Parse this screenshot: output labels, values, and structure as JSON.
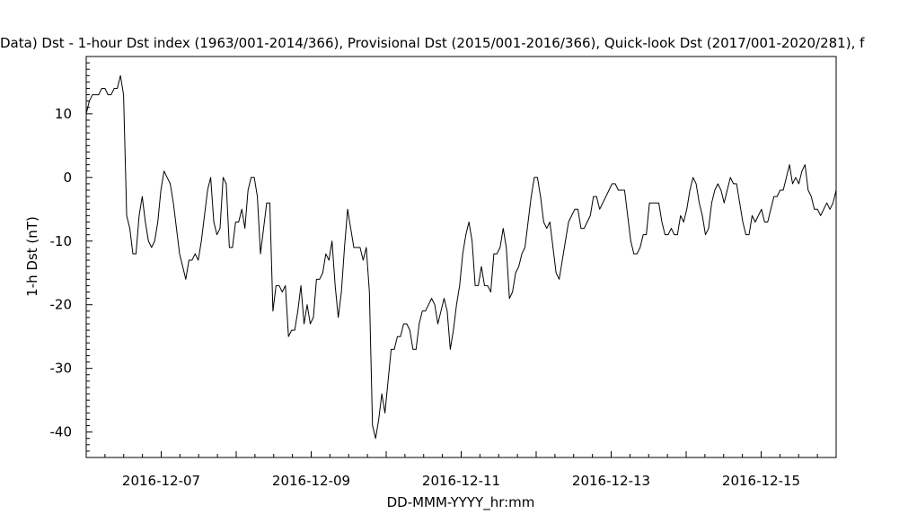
{
  "chart_data": {
    "type": "line",
    "title": "Data)  Dst - 1-hour Dst index (1963/001-2014/366), Provisional Dst (2015/001-2016/366), Quick-look Dst (2017/001-2020/281), f",
    "xlabel": "DD-MMM-YYYY_hr:mm",
    "ylabel": "1-h Dst (nT)",
    "x_start": "2016-12-06 00:00",
    "x_end": "2016-12-16 00:00",
    "x_ticks": [
      "2016-12-07",
      "2016-12-09",
      "2016-12-11",
      "2016-12-13",
      "2016-12-15"
    ],
    "ylim": [
      -44,
      19
    ],
    "y_ticks": [
      10,
      0,
      -10,
      -20,
      -30,
      -40
    ],
    "grid": false,
    "series": [
      {
        "color": "#000000",
        "values": [
          10,
          12,
          13,
          13,
          13,
          14,
          14,
          13,
          13,
          14,
          14,
          16,
          13,
          -6,
          -8,
          -12,
          -12,
          -6,
          -3,
          -7,
          -10,
          -11,
          -10,
          -7,
          -2,
          1,
          0,
          -1,
          -4,
          -8,
          -12,
          -14,
          -16,
          -13,
          -13,
          -12,
          -13,
          -10,
          -6,
          -2,
          0,
          -7,
          -9,
          -8,
          0,
          -1,
          -11,
          -11,
          -7,
          -7,
          -5,
          -8,
          -2,
          0,
          0,
          -3,
          -12,
          -8,
          -4,
          -4,
          -21,
          -17,
          -17,
          -18,
          -17,
          -25,
          -24,
          -24,
          -21,
          -17,
          -23,
          -20,
          -23,
          -22,
          -16,
          -16,
          -15,
          -12,
          -13,
          -10,
          -17,
          -22,
          -18,
          -11,
          -5,
          -8,
          -11,
          -11,
          -11,
          -13,
          -11,
          -18,
          -39,
          -41,
          -38,
          -34,
          -37,
          -32,
          -27,
          -27,
          -25,
          -25,
          -23,
          -23,
          -24,
          -27,
          -27,
          -23,
          -21,
          -21,
          -20,
          -19,
          -20,
          -23,
          -21,
          -19,
          -21,
          -27,
          -24,
          -20,
          -17,
          -12,
          -9,
          -7,
          -10,
          -17,
          -17,
          -14,
          -17,
          -17,
          -18,
          -12,
          -12,
          -11,
          -8,
          -11,
          -19,
          -18,
          -15,
          -14,
          -12,
          -11,
          -7,
          -3,
          0,
          0,
          -3,
          -7,
          -8,
          -7,
          -11,
          -15,
          -16,
          -13,
          -10,
          -7,
          -6,
          -5,
          -5,
          -8,
          -8,
          -7,
          -6,
          -3,
          -3,
          -5,
          -4,
          -3,
          -2,
          -1,
          -1,
          -2,
          -2,
          -2,
          -6,
          -10,
          -12,
          -12,
          -11,
          -9,
          -9,
          -4,
          -4,
          -4,
          -4,
          -7,
          -9,
          -9,
          -8,
          -9,
          -9,
          -6,
          -7,
          -5,
          -2,
          0,
          -1,
          -4,
          -6,
          -9,
          -8,
          -4,
          -2,
          -1,
          -2,
          -4,
          -2,
          0,
          -1,
          -1,
          -4,
          -7,
          -9,
          -9,
          -6,
          -7,
          -6,
          -5,
          -7,
          -7,
          -5,
          -3,
          -3,
          -2,
          -2,
          0,
          2,
          -1,
          0,
          -1,
          1,
          2,
          -2,
          -3,
          -5,
          -5,
          -6,
          -5,
          -4,
          -5,
          -4,
          -2
        ]
      }
    ]
  }
}
